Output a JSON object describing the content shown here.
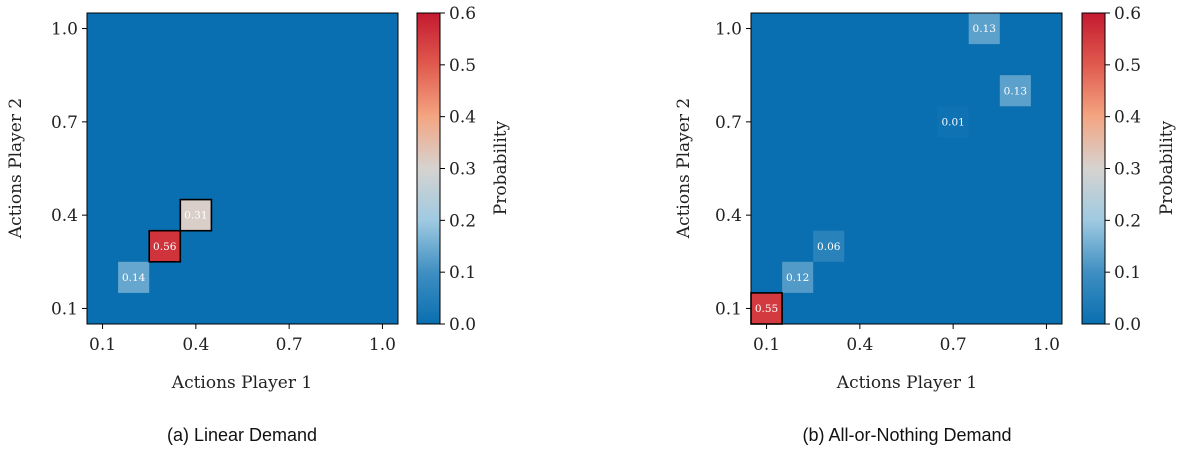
{
  "chart_data": [
    {
      "type": "heatmap",
      "title": "",
      "caption": "(a) Linear Demand",
      "xlabel": "Actions Player 1",
      "ylabel": "Actions Player 2",
      "x_ticks": [
        "0.1",
        "0.4",
        "0.7",
        "1.0"
      ],
      "y_ticks": [
        "0.1",
        "0.4",
        "0.7",
        "1.0"
      ],
      "grid_size": 10,
      "cells": [
        {
          "x": 0.2,
          "y": 0.2,
          "value": 0.14,
          "label": "0.14",
          "outlined": false
        },
        {
          "x": 0.3,
          "y": 0.3,
          "value": 0.56,
          "label": "0.56",
          "outlined": true
        },
        {
          "x": 0.4,
          "y": 0.4,
          "value": 0.31,
          "label": "0.31",
          "outlined": true
        }
      ],
      "colorbar": {
        "label": "Probability",
        "min": 0.0,
        "max": 0.6,
        "ticks": [
          "0.0",
          "0.1",
          "0.2",
          "0.3",
          "0.4",
          "0.5",
          "0.6"
        ]
      }
    },
    {
      "type": "heatmap",
      "title": "",
      "caption": "(b) All-or-Nothing Demand",
      "xlabel": "Actions Player 1",
      "ylabel": "Actions Player 2",
      "x_ticks": [
        "0.1",
        "0.4",
        "0.7",
        "1.0"
      ],
      "y_ticks": [
        "0.1",
        "0.4",
        "0.7",
        "1.0"
      ],
      "grid_size": 10,
      "cells": [
        {
          "x": 0.1,
          "y": 0.1,
          "value": 0.55,
          "label": "0.55",
          "outlined": true
        },
        {
          "x": 0.2,
          "y": 0.2,
          "value": 0.12,
          "label": "0.12",
          "outlined": false
        },
        {
          "x": 0.3,
          "y": 0.3,
          "value": 0.06,
          "label": "0.06",
          "outlined": false
        },
        {
          "x": 0.7,
          "y": 0.7,
          "value": 0.01,
          "label": "0.01",
          "outlined": false
        },
        {
          "x": 0.9,
          "y": 0.8,
          "value": 0.13,
          "label": "0.13",
          "outlined": false
        },
        {
          "x": 0.8,
          "y": 1.0,
          "value": 0.13,
          "label": "0.13",
          "outlined": false
        }
      ],
      "colorbar": {
        "label": "Probability",
        "min": 0.0,
        "max": 0.6,
        "ticks": [
          "0.0",
          "0.1",
          "0.2",
          "0.3",
          "0.4",
          "0.5",
          "0.6"
        ]
      }
    }
  ],
  "colors": {
    "background_cell": "#0a6fb0",
    "outline": "#000000"
  }
}
